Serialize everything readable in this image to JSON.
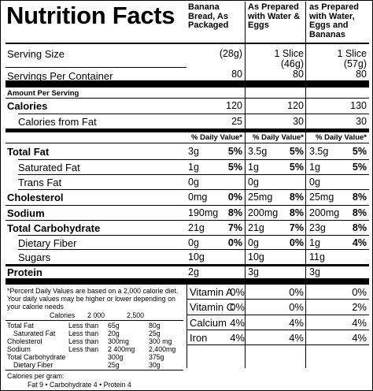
{
  "title": "Nutrition Facts",
  "columns": [
    "Banana Bread, As Packaged",
    "As Prepared with Water & Eggs",
    "as Prepared with Water, Eggs and Bananas"
  ],
  "serving_size": {
    "label": "Serving Size",
    "values": [
      "(28g)",
      "1 Slice (46g)",
      "1 Slice (57g)"
    ]
  },
  "servings_per_container": {
    "label": "Servings Per Container",
    "values": [
      "80",
      "80",
      "80"
    ]
  },
  "amount_per_serving": "Amount Per Serving",
  "calories": {
    "label": "Calories",
    "values": [
      "120",
      "120",
      "130"
    ]
  },
  "calories_from_fat": {
    "label": "Calories from Fat",
    "values": [
      "25",
      "30",
      "30"
    ]
  },
  "daily_value_header": "% Daily Value*",
  "nutrients": [
    {
      "label": "Total Fat",
      "bold": true,
      "indent": false,
      "cols": [
        [
          "3g",
          "5%"
        ],
        [
          "3.5g",
          "5%"
        ],
        [
          "3.5g",
          "5%"
        ]
      ]
    },
    {
      "label": "Saturated Fat",
      "bold": false,
      "indent": true,
      "cols": [
        [
          "1g",
          "5%"
        ],
        [
          "1g",
          "5%"
        ],
        [
          "1g",
          "5%"
        ]
      ]
    },
    {
      "label": "Trans Fat",
      "bold": false,
      "indent": true,
      "cols": [
        [
          "0g",
          ""
        ],
        [
          "0g",
          ""
        ],
        [
          "0g",
          ""
        ]
      ]
    },
    {
      "label": "Cholesterol",
      "bold": true,
      "indent": false,
      "cols": [
        [
          "0mg",
          "0%"
        ],
        [
          "25mg",
          "8%"
        ],
        [
          "25mg",
          "8%"
        ]
      ]
    },
    {
      "label": "Sodium",
      "bold": true,
      "indent": false,
      "cols": [
        [
          "190mg",
          "8%"
        ],
        [
          "200mg",
          "8%"
        ],
        [
          "200mg",
          "8%"
        ]
      ]
    },
    {
      "label": "Total Carbohydrate",
      "bold": true,
      "indent": false,
      "cols": [
        [
          "21g",
          "7%"
        ],
        [
          "21g",
          "7%"
        ],
        [
          "23g",
          "8%"
        ]
      ]
    },
    {
      "label": "Dietary Fiber",
      "bold": false,
      "indent": true,
      "cols": [
        [
          "0g",
          "0%"
        ],
        [
          "0g",
          "0%"
        ],
        [
          "1g",
          "4%"
        ]
      ]
    },
    {
      "label": "Sugars",
      "bold": false,
      "indent": true,
      "cols": [
        [
          "10g",
          ""
        ],
        [
          "10g",
          ""
        ],
        [
          "11g",
          ""
        ]
      ]
    },
    {
      "label": "Protein",
      "bold": true,
      "indent": false,
      "cols": [
        [
          "2g",
          ""
        ],
        [
          "3g",
          ""
        ],
        [
          "3g",
          ""
        ]
      ]
    }
  ],
  "footnote": "*Percent Daily Values are based on a 2,000 calorie diet. Your daily values may be higher or lower depending on your calorie needs",
  "dv_table": {
    "header": [
      "Calories",
      "2 000",
      "2,500"
    ],
    "rows": [
      [
        "Total Fat",
        "Less than",
        "65g",
        "80g"
      ],
      [
        "Saturated Fat",
        "Less than",
        "20g",
        "25g"
      ],
      [
        "Cholesterol",
        "Less than",
        "300mg",
        "300 mg"
      ],
      [
        "Sodium",
        "Less than",
        "2 400mg",
        "2,400mg"
      ],
      [
        "Total Carbohydrate",
        "",
        "300g",
        "375g"
      ],
      [
        "Dietary Fiber",
        "",
        "25g",
        "30g"
      ]
    ]
  },
  "calories_per_gram": {
    "label": "Calories per gram:",
    "line": "Fat 9  •  Carbohydrate 4  •  Protein 4"
  },
  "vitamins": [
    {
      "label": "Vitamin A",
      "values": [
        "0%",
        "0%",
        "0%"
      ]
    },
    {
      "label": "Vitamin C",
      "values": [
        "0%",
        "0%",
        "2%"
      ]
    },
    {
      "label": "Calcium",
      "values": [
        "4%",
        "4%",
        "4%"
      ]
    },
    {
      "label": "Iron",
      "values": [
        "4%",
        "4%",
        "4%"
      ]
    }
  ]
}
